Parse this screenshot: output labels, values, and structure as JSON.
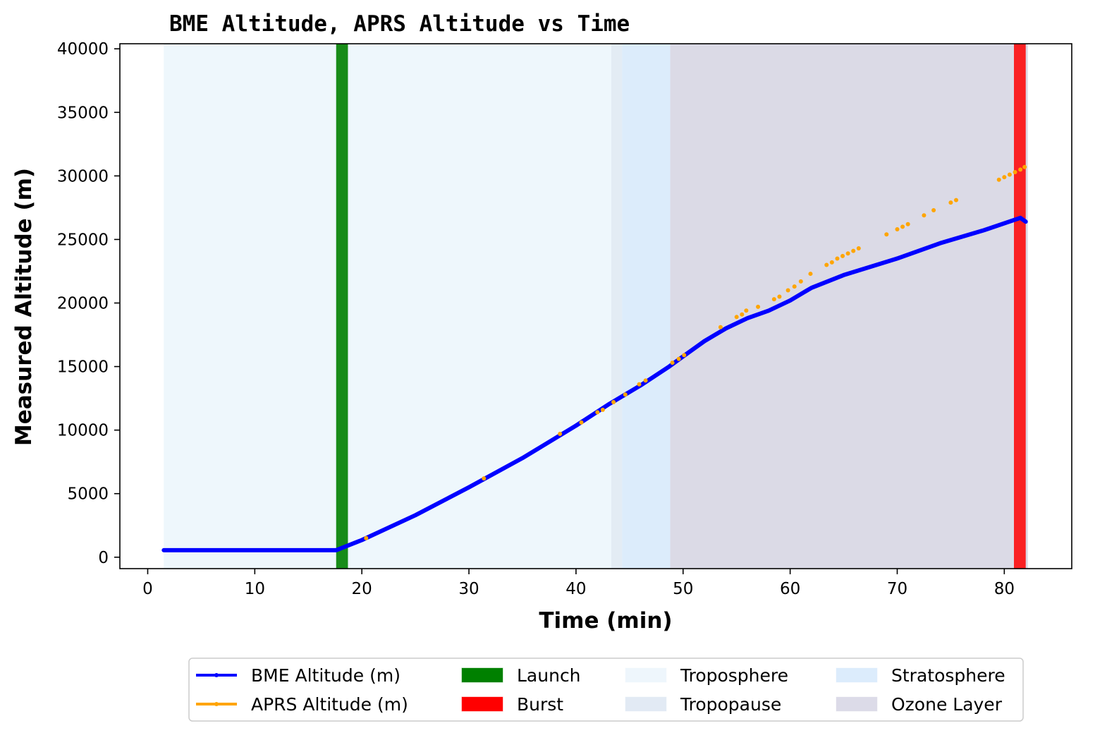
{
  "chart_data": {
    "type": "line",
    "title": "BME Altitude, APRS Altitude vs Time",
    "xlabel": "Time (min)",
    "ylabel": "Measured Altitude (m)",
    "xlim": [
      -2.6,
      86.3
    ],
    "ylim": [
      -900,
      40400
    ],
    "x_ticks": [
      0,
      10,
      20,
      30,
      40,
      50,
      60,
      70,
      80
    ],
    "y_ticks": [
      0,
      5000,
      10000,
      15000,
      20000,
      25000,
      30000,
      35000,
      40000
    ],
    "grid": false,
    "legend_position": "bottom-center",
    "series": [
      {
        "name": "BME Altitude (m)",
        "color": "#0000ff",
        "style": "line",
        "points": [
          [
            1.5,
            550
          ],
          [
            17.6,
            550
          ],
          [
            18.5,
            850
          ],
          [
            20,
            1350
          ],
          [
            25,
            3300
          ],
          [
            30,
            5500
          ],
          [
            35,
            7800
          ],
          [
            40,
            10350
          ],
          [
            43,
            12000
          ],
          [
            46,
            13500
          ],
          [
            48.7,
            15000
          ],
          [
            50,
            15800
          ],
          [
            52,
            17000
          ],
          [
            54,
            18000
          ],
          [
            56,
            18800
          ],
          [
            58,
            19400
          ],
          [
            60,
            20200
          ],
          [
            62,
            21200
          ],
          [
            65,
            22200
          ],
          [
            70,
            23500
          ],
          [
            74,
            24700
          ],
          [
            78,
            25700
          ],
          [
            81.5,
            26700
          ],
          [
            82,
            26400
          ]
        ]
      },
      {
        "name": "APRS Altitude (m)",
        "color": "#ffa500",
        "style": "scatter",
        "points": [
          [
            20.4,
            1500
          ],
          [
            31.4,
            6200
          ],
          [
            38.5,
            9700
          ],
          [
            40.5,
            10600
          ],
          [
            42,
            11400
          ],
          [
            42.5,
            11600
          ],
          [
            43.5,
            12200
          ],
          [
            44.6,
            12800
          ],
          [
            45.9,
            13600
          ],
          [
            46.5,
            13900
          ],
          [
            49,
            15300
          ],
          [
            49.6,
            15600
          ],
          [
            50.1,
            15900
          ],
          [
            53.5,
            18100
          ],
          [
            55,
            18900
          ],
          [
            55.5,
            19100
          ],
          [
            55.9,
            19400
          ],
          [
            57,
            19700
          ],
          [
            58.5,
            20300
          ],
          [
            59,
            20500
          ],
          [
            59.8,
            21000
          ],
          [
            60.4,
            21300
          ],
          [
            61,
            21700
          ],
          [
            61.9,
            22300
          ],
          [
            63.4,
            23000
          ],
          [
            63.9,
            23200
          ],
          [
            64.4,
            23500
          ],
          [
            64.9,
            23700
          ],
          [
            65.4,
            23900
          ],
          [
            65.9,
            24100
          ],
          [
            66.4,
            24300
          ],
          [
            69,
            25400
          ],
          [
            70,
            25800
          ],
          [
            70.5,
            26000
          ],
          [
            71,
            26200
          ],
          [
            72.5,
            26900
          ],
          [
            73.4,
            27300
          ],
          [
            75,
            27900
          ],
          [
            75.5,
            28100
          ],
          [
            79.5,
            29700
          ],
          [
            80,
            29900
          ],
          [
            80.5,
            30100
          ],
          [
            81,
            30300
          ],
          [
            81.5,
            30500
          ],
          [
            81.9,
            30700
          ]
        ]
      }
    ],
    "spans": [
      {
        "name": "Troposphere",
        "x": [
          1.5,
          43.3
        ],
        "color": "#e0f0fa",
        "opacity": 0.55
      },
      {
        "name": "Tropopause",
        "x": [
          43.3,
          44.3
        ],
        "color": "#b0c8e0",
        "opacity": 0.35
      },
      {
        "name": "Stratosphere",
        "x": [
          44.3,
          48.8
        ],
        "color": "#c4e0f8",
        "opacity": 0.6
      },
      {
        "name": "Ozone Layer",
        "x": [
          48.8,
          82.2
        ],
        "color": "#b0acc8",
        "opacity": 0.45
      },
      {
        "name": "Launch",
        "x": [
          17.6,
          18.7
        ],
        "color": "#008000",
        "opacity": 0.9
      },
      {
        "name": "Burst",
        "x": [
          80.9,
          82.0
        ],
        "color": "#ff0000",
        "opacity": 0.85
      }
    ],
    "legend": [
      {
        "label": "BME Altitude (m)",
        "kind": "line",
        "color": "#0000ff"
      },
      {
        "label": "APRS Altitude (m)",
        "kind": "line",
        "color": "#ffa500"
      },
      {
        "label": "Launch",
        "kind": "patch",
        "color": "#008000"
      },
      {
        "label": "Burst",
        "kind": "patch",
        "color": "#ff0000"
      },
      {
        "label": "Troposphere",
        "kind": "patch",
        "color": "#eef6fc"
      },
      {
        "label": "Tropopause",
        "kind": "patch",
        "color": "#e2eaf4"
      },
      {
        "label": "Stratosphere",
        "kind": "patch",
        "color": "#dcecfc"
      },
      {
        "label": "Ozone Layer",
        "kind": "patch",
        "color": "#dcdbe8"
      }
    ]
  }
}
